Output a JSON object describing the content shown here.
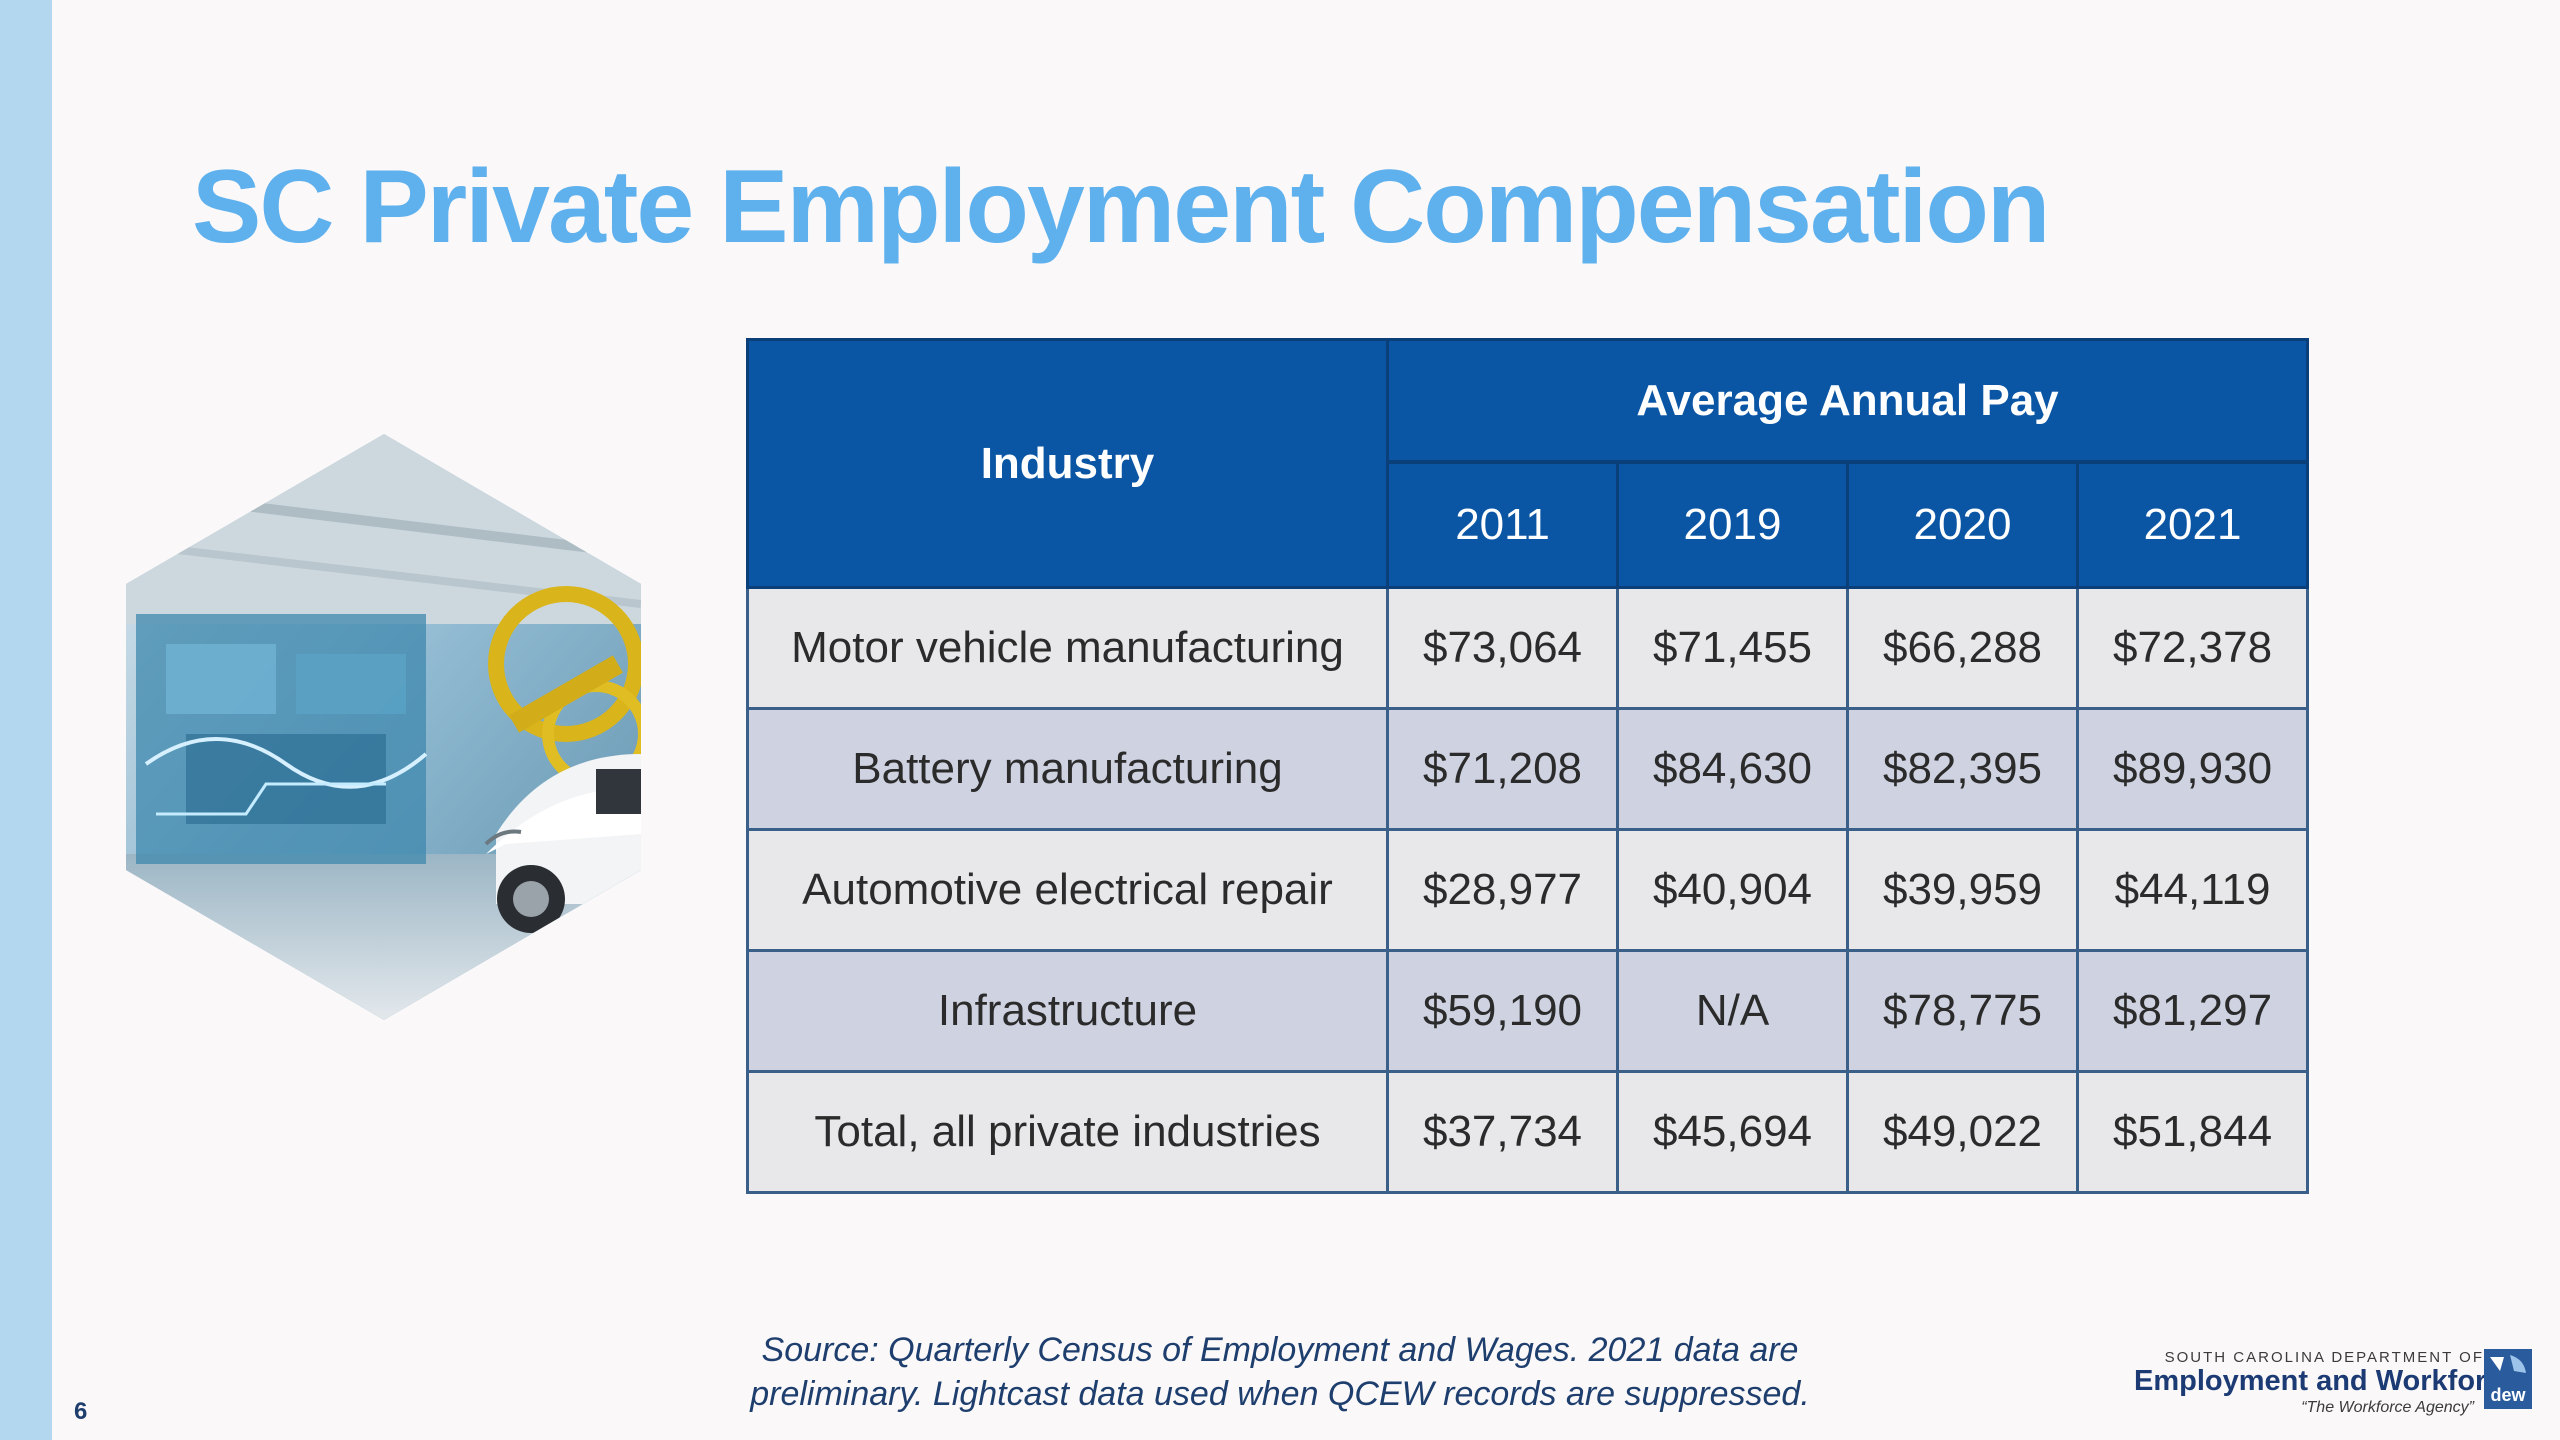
{
  "slide": {
    "title": "SC Private Employment Compensation",
    "page_number": "6"
  },
  "table": {
    "industry_header": "Industry",
    "group_header": "Average Annual Pay",
    "years": [
      "2011",
      "2019",
      "2020",
      "2021"
    ],
    "rows": [
      {
        "industry": "Motor vehicle manufacturing",
        "values": [
          "$73,064",
          "$71,455",
          "$66,288",
          "$72,378"
        ]
      },
      {
        "industry": "Battery manufacturing",
        "values": [
          "$71,208",
          "$84,630",
          "$82,395",
          "$89,930"
        ]
      },
      {
        "industry": "Automotive electrical repair",
        "values": [
          "$28,977",
          "$40,904",
          "$39,959",
          "$44,119"
        ]
      },
      {
        "industry": "Infrastructure",
        "values": [
          "$59,190",
          "N/A",
          "$78,775",
          "$81,297"
        ]
      },
      {
        "industry": "Total, all private industries",
        "values": [
          "$37,734",
          "$45,694",
          "$49,022",
          "$51,844"
        ]
      }
    ]
  },
  "source": {
    "line1": "Source: Quarterly Census of Employment and Wages. 2021 data are",
    "line2": "preliminary. Lightcast data used when QCEW records are suppressed."
  },
  "logo": {
    "line1": "SOUTH CAROLINA DEPARTMENT OF",
    "line2": "Employment and Workforce",
    "line3": "“The Workforce Agency”",
    "mark_text": "dew"
  },
  "colors": {
    "title": "#5fb1ee",
    "header_bg": "#0b56a4",
    "row_light": "#e8e8ea",
    "row_dark": "#cfd3e1",
    "left_bar": "#b4d7f0"
  }
}
